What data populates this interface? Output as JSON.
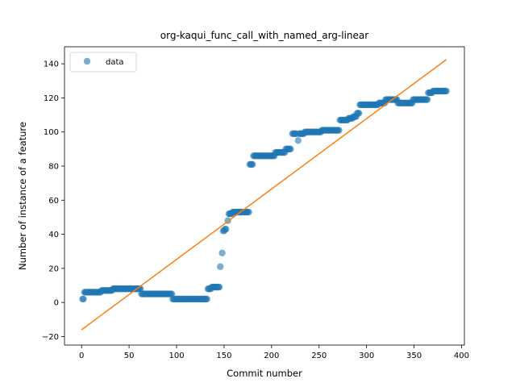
{
  "chart_data": {
    "type": "scatter",
    "title": "org-kaqui_func_call_with_named_arg-linear",
    "xlabel": "Commit number",
    "ylabel": "Number of instance of a feature",
    "xlim": [
      -18,
      403
    ],
    "ylim": [
      -25,
      150
    ],
    "xticks": [
      0,
      50,
      100,
      150,
      200,
      250,
      300,
      350,
      400
    ],
    "yticks": [
      -20,
      0,
      20,
      40,
      60,
      80,
      100,
      120,
      140
    ],
    "grid": false,
    "legend": {
      "position": "top-left",
      "entries": [
        "data"
      ]
    },
    "series": [
      {
        "name": "data",
        "kind": "scatter",
        "color": "#1f77b4",
        "opacity": 0.6,
        "segments": [
          {
            "x_from": 1,
            "x_to": 2,
            "y": 2
          },
          {
            "x_from": 3,
            "x_to": 20,
            "y": 6
          },
          {
            "x_from": 21,
            "x_to": 32,
            "y": 7
          },
          {
            "x_from": 33,
            "x_to": 62,
            "y": 8
          },
          {
            "x_from": 63,
            "x_to": 95,
            "y": 5
          },
          {
            "x_from": 96,
            "x_to": 132,
            "y": 2
          },
          {
            "x_from": 133,
            "x_to": 136,
            "y": 8
          },
          {
            "x_from": 137,
            "x_to": 145,
            "y": 9
          },
          {
            "x_from": 146,
            "x_to": 146,
            "y": 21
          },
          {
            "x_from": 148,
            "x_to": 148,
            "y": 29
          },
          {
            "x_from": 149,
            "x_to": 150,
            "y": 42
          },
          {
            "x_from": 151,
            "x_to": 152,
            "y": 43
          },
          {
            "x_from": 154,
            "x_to": 154,
            "y": 48
          },
          {
            "x_from": 155,
            "x_to": 158,
            "y": 52
          },
          {
            "x_from": 159,
            "x_to": 176,
            "y": 53
          },
          {
            "x_from": 177,
            "x_to": 180,
            "y": 81
          },
          {
            "x_from": 181,
            "x_to": 203,
            "y": 86
          },
          {
            "x_from": 204,
            "x_to": 214,
            "y": 88
          },
          {
            "x_from": 215,
            "x_to": 220,
            "y": 90
          },
          {
            "x_from": 222,
            "x_to": 226,
            "y": 99
          },
          {
            "x_from": 228,
            "x_to": 228,
            "y": 95
          },
          {
            "x_from": 229,
            "x_to": 234,
            "y": 99
          },
          {
            "x_from": 235,
            "x_to": 252,
            "y": 100
          },
          {
            "x_from": 253,
            "x_to": 271,
            "y": 101
          },
          {
            "x_from": 272,
            "x_to": 280,
            "y": 107
          },
          {
            "x_from": 281,
            "x_to": 285,
            "y": 108
          },
          {
            "x_from": 286,
            "x_to": 289,
            "y": 109
          },
          {
            "x_from": 290,
            "x_to": 292,
            "y": 111
          },
          {
            "x_from": 293,
            "x_to": 312,
            "y": 116
          },
          {
            "x_from": 313,
            "x_to": 319,
            "y": 117
          },
          {
            "x_from": 320,
            "x_to": 332,
            "y": 119
          },
          {
            "x_from": 333,
            "x_to": 348,
            "y": 117
          },
          {
            "x_from": 349,
            "x_to": 364,
            "y": 119
          },
          {
            "x_from": 365,
            "x_to": 369,
            "y": 123
          },
          {
            "x_from": 370,
            "x_to": 384,
            "y": 124
          }
        ]
      },
      {
        "name": "",
        "kind": "line",
        "color": "#ff7f0e",
        "x": [
          0,
          384
        ],
        "y": [
          -16,
          142.5
        ]
      }
    ]
  }
}
